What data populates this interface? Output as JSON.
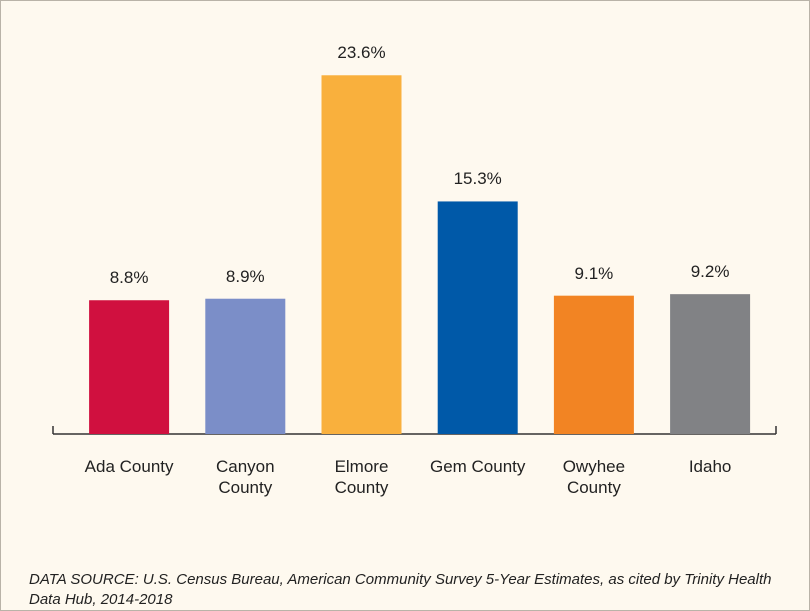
{
  "chart_data": {
    "type": "bar",
    "categories": [
      "Ada County",
      "Canyon County",
      "Elmore County",
      "Gem County",
      "Owyhee County",
      "Idaho"
    ],
    "values": [
      8.8,
      8.9,
      23.6,
      15.3,
      9.1,
      9.2
    ],
    "value_labels": [
      "8.8%",
      "8.9%",
      "23.6%",
      "15.3%",
      "9.1%",
      "9.2%"
    ],
    "colors": [
      "#d0103f",
      "#7b8ec8",
      "#f9b03d",
      "#0059a8",
      "#f28423",
      "#818285"
    ],
    "source": "DATA SOURCE: U.S. Census Bureau, American Community Survey 5-Year Estimates, as cited by Trinity Health Data Hub, 2014-2018"
  }
}
